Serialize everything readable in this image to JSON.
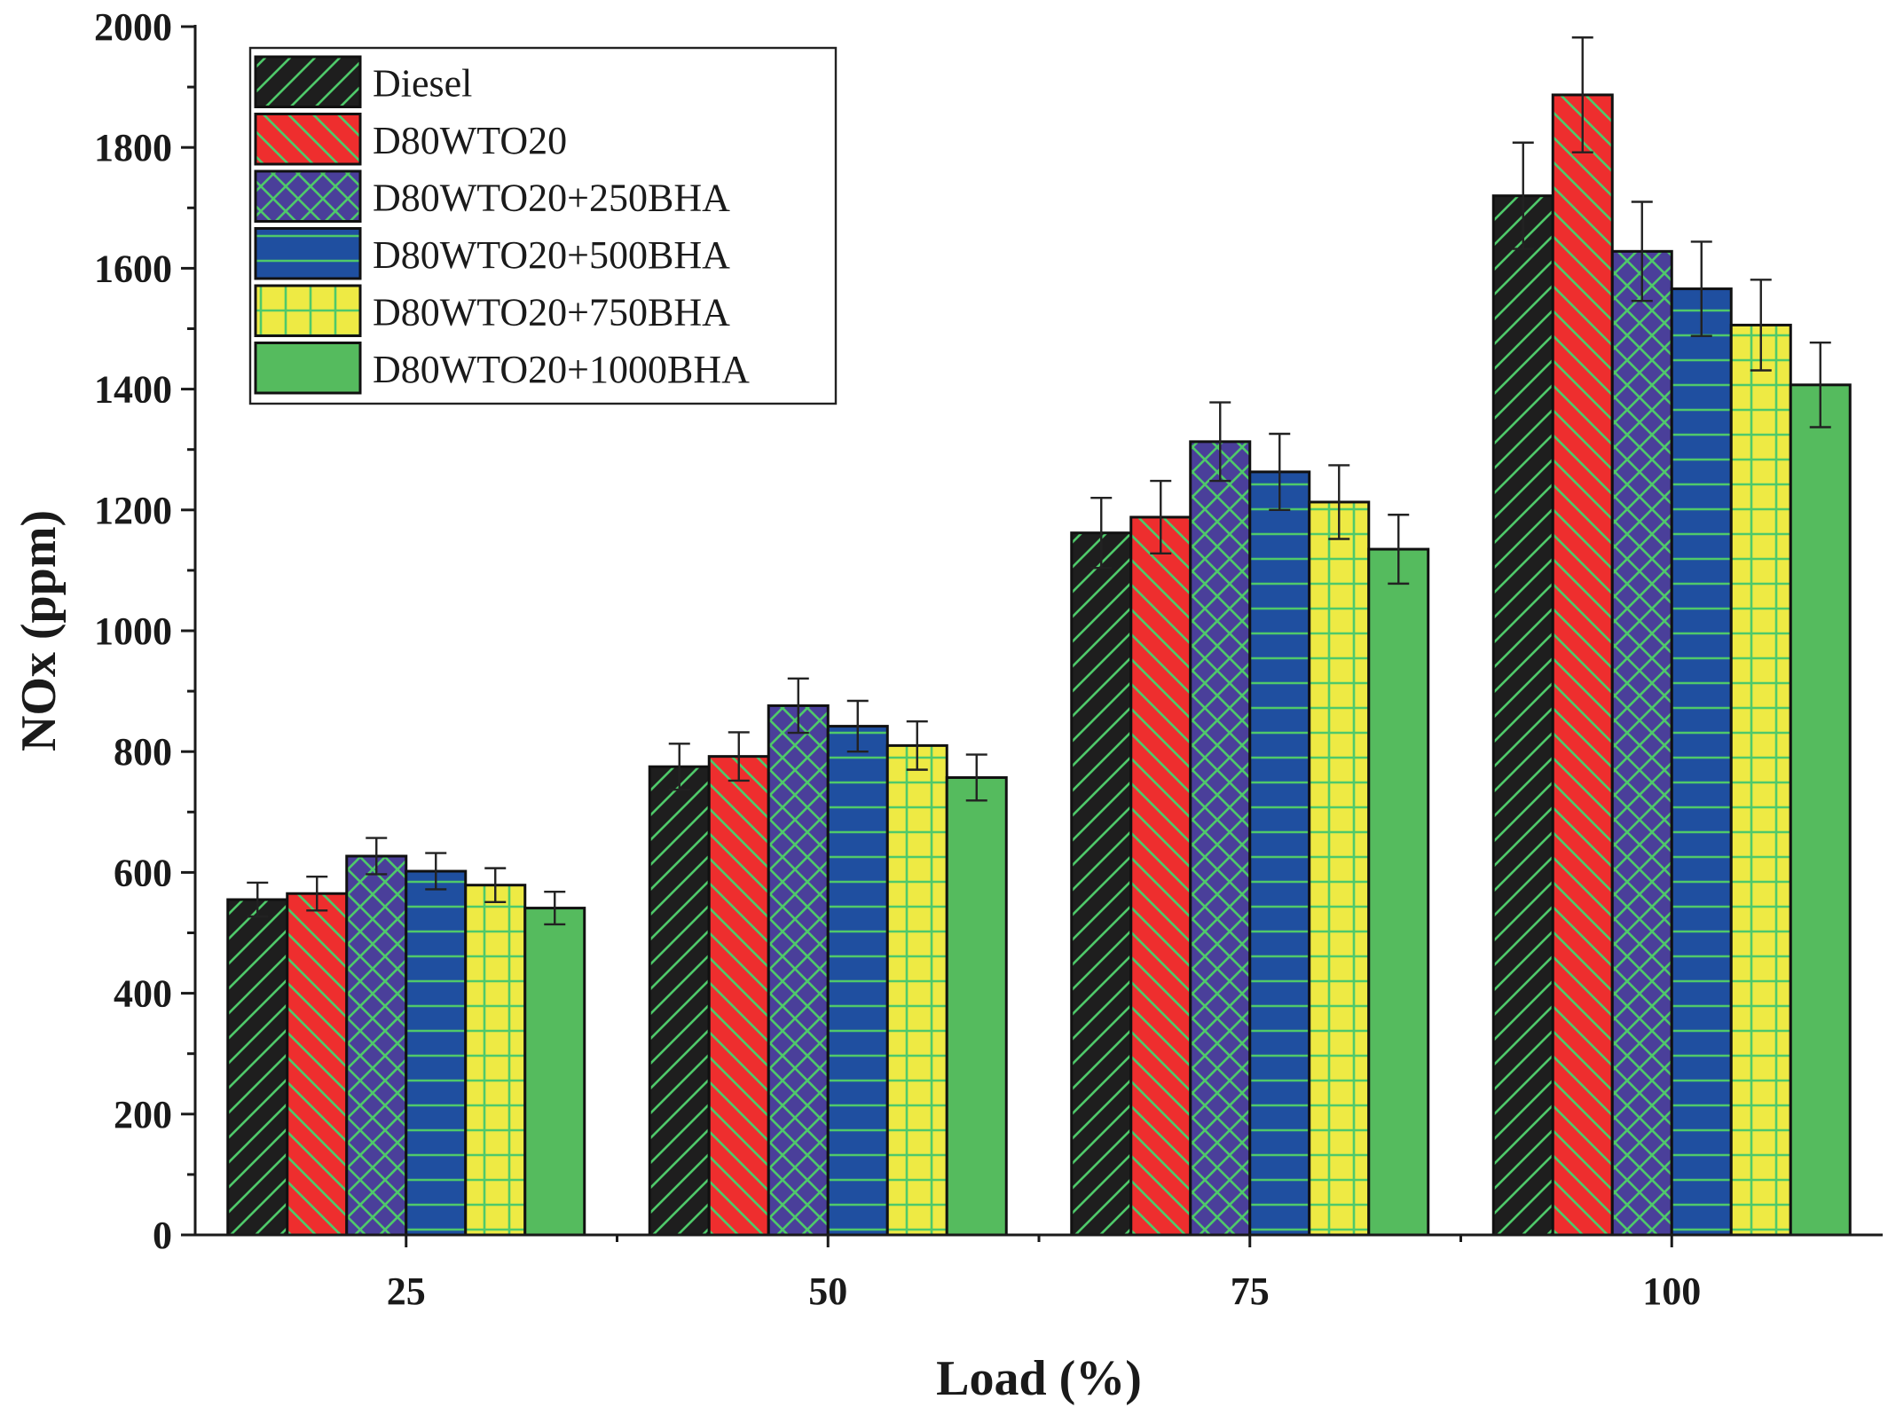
{
  "chart_data": {
    "type": "bar",
    "categories": [
      "25",
      "50",
      "75",
      "100"
    ],
    "series": [
      {
        "name": "Diesel",
        "values": [
          555,
          775,
          1162,
          1720
        ],
        "errors": [
          28,
          38,
          58,
          88
        ]
      },
      {
        "name": "D80WTO20",
        "values": [
          565,
          792,
          1188,
          1887
        ],
        "errors": [
          28,
          40,
          60,
          95
        ]
      },
      {
        "name": "D80WTO20+250BHA",
        "values": [
          627,
          876,
          1313,
          1628
        ],
        "errors": [
          30,
          45,
          65,
          82
        ]
      },
      {
        "name": "D80WTO20+500BHA",
        "values": [
          602,
          842,
          1263,
          1566
        ],
        "errors": [
          30,
          42,
          63,
          78
        ]
      },
      {
        "name": "D80WTO20+750BHA",
        "values": [
          579,
          810,
          1213,
          1506
        ],
        "errors": [
          28,
          40,
          61,
          75
        ]
      },
      {
        "name": "D80WTO20+1000BHA",
        "values": [
          541,
          757,
          1135,
          1407
        ],
        "errors": [
          27,
          38,
          57,
          70
        ]
      }
    ],
    "series_colors": [
      "#1e1e1e",
      "#ee2e2e",
      "#4a3f9a",
      "#1f4fa0",
      "#eeea44",
      "#55bb5e"
    ],
    "series_patterns": [
      "diag-up",
      "diag-down",
      "crosshatch",
      "horizontal",
      "grid",
      "solid"
    ],
    "pattern_line_color": "#4fc96a",
    "xlabel": "Load (%)",
    "ylabel": "NOx (ppm)",
    "ylim": [
      0,
      2000
    ],
    "yticks": [
      0,
      200,
      400,
      600,
      800,
      1000,
      1200,
      1400,
      1600,
      1800,
      2000
    ],
    "grid": false,
    "legend_position": "top-left"
  }
}
